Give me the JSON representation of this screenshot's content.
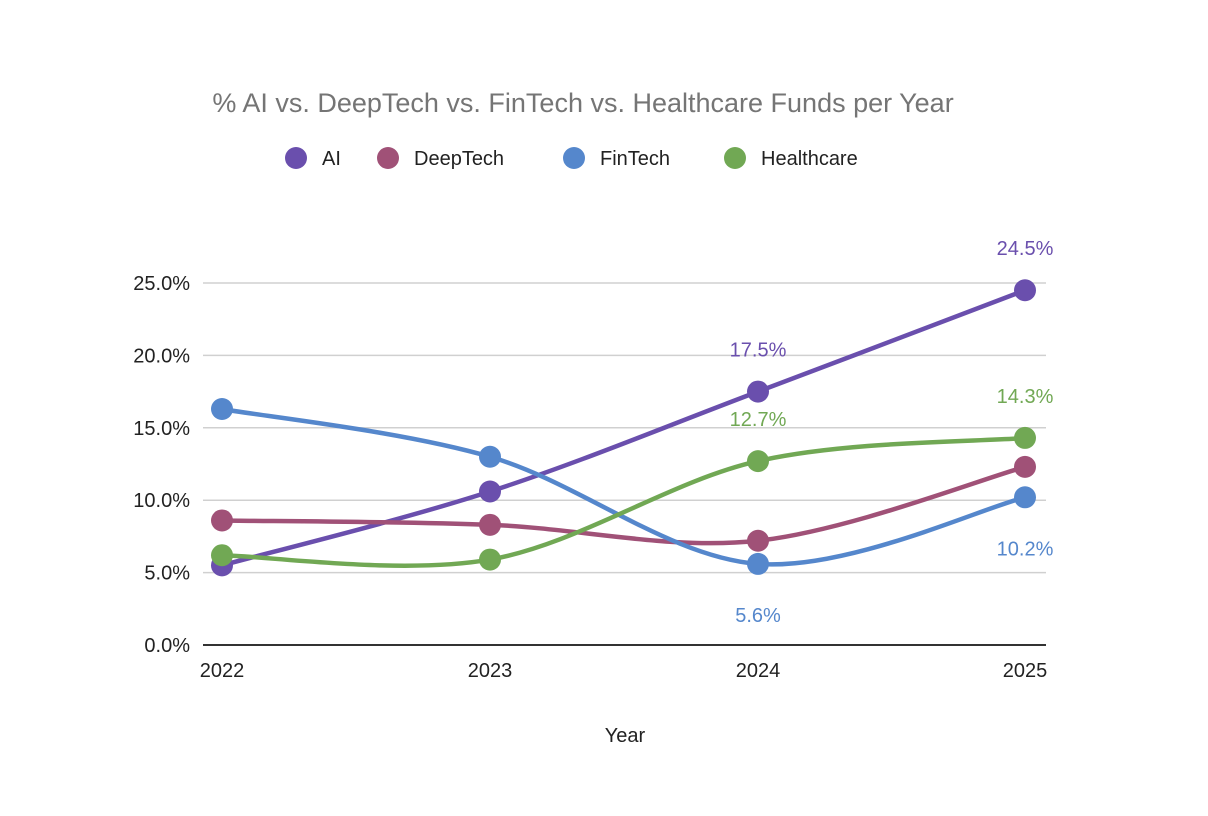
{
  "chart_data": {
    "type": "line",
    "title": "% AI vs. DeepTech vs. FinTech vs. Healthcare Funds per Year",
    "xlabel": "Year",
    "ylabel": "",
    "categories": [
      "2022",
      "2023",
      "2024",
      "2025"
    ],
    "ylim": [
      0,
      25
    ],
    "y_ticks": [
      "0.0%",
      "5.0%",
      "10.0%",
      "15.0%",
      "20.0%",
      "25.0%"
    ],
    "y_tick_values": [
      0,
      5,
      10,
      15,
      20,
      25
    ],
    "grid": true,
    "legend_position": "top",
    "smooth": true,
    "series": [
      {
        "name": "AI",
        "color": "#6a4fad",
        "values": [
          5.5,
          10.6,
          17.5,
          24.5
        ],
        "labels": [
          "",
          "",
          "17.5%",
          "24.5%"
        ],
        "label_placement": [
          "",
          "",
          "above",
          "above"
        ]
      },
      {
        "name": "DeepTech",
        "color": "#a05177",
        "values": [
          8.6,
          8.3,
          7.2,
          12.3
        ],
        "labels": [
          "",
          "",
          "",
          ""
        ],
        "label_placement": [
          "",
          "",
          "",
          ""
        ]
      },
      {
        "name": "FinTech",
        "color": "#5587cc",
        "values": [
          16.3,
          13.0,
          5.6,
          10.2
        ],
        "labels": [
          "",
          "",
          "5.6%",
          "10.2%"
        ],
        "label_placement": [
          "",
          "",
          "below",
          "below"
        ]
      },
      {
        "name": "Healthcare",
        "color": "#71a854",
        "values": [
          6.2,
          5.9,
          12.7,
          14.3
        ],
        "labels": [
          "",
          "",
          "12.7%",
          "14.3%"
        ],
        "label_placement": [
          "",
          "",
          "above",
          "above"
        ]
      }
    ]
  }
}
